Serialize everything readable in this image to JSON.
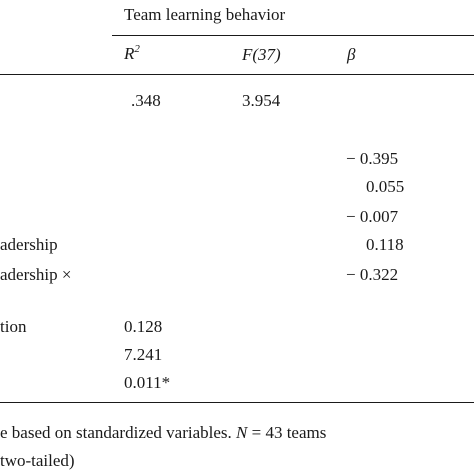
{
  "table": {
    "group_header": "Team learning behavior",
    "columns": {
      "r2_base": "R",
      "r2_exp": "2",
      "f": "F(37)",
      "beta": "β"
    },
    "row_model": {
      "r2": ".348",
      "f": "3.954"
    },
    "beta_values": [
      "− 0.395",
      "0.055",
      "− 0.007",
      "0.118",
      "− 0.322"
    ],
    "partial_labels": {
      "leadership": "adership",
      "leadership_interaction": "adership ×",
      "interaction": "tion"
    },
    "bottom_values": [
      "0.128",
      "7.241",
      "0.011*"
    ],
    "note_line_1": "e based on standardized variables. N = 43 teams",
    "note_line_2": "two-tailed)"
  }
}
